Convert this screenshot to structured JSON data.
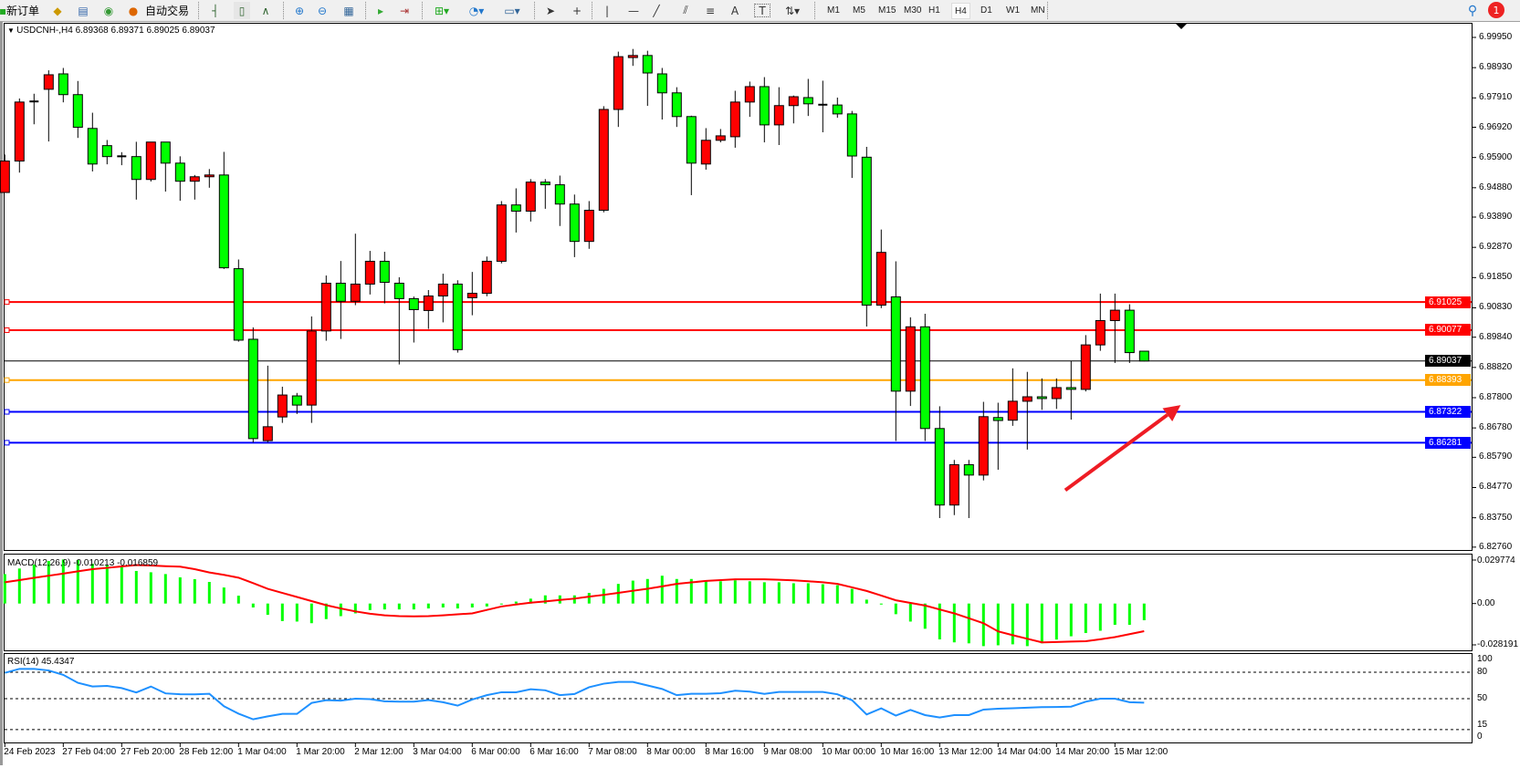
{
  "toolbar": {
    "new_order": "新订单",
    "auto_trading": "自动交易",
    "timeframes": [
      "M1",
      "M5",
      "M15",
      "M30",
      "H1",
      "H4",
      "D1",
      "W1",
      "MN"
    ],
    "active_timeframe": "H4",
    "text_tool": "A",
    "text_label_tool": "T",
    "notification_count": "1",
    "icons": [
      "new-order-icon",
      "market-watch-icon",
      "navigator-icon",
      "signals-icon",
      "auto-trading-icon",
      "bar-chart-icon",
      "candlestick-icon",
      "line-chart-icon",
      "zoom-in-icon",
      "zoom-out-icon",
      "tile-windows-icon",
      "auto-scroll-icon",
      "chart-shift-icon",
      "indicators-icon",
      "periods-icon",
      "templates-icon",
      "cursor-icon",
      "crosshair-icon",
      "vertical-line-icon",
      "horizontal-line-icon",
      "trendline-icon",
      "equidistant-channel-icon",
      "fibonacci-icon",
      "text-icon",
      "text-label-icon",
      "arrows-icon",
      "search-icon",
      "notification-icon"
    ]
  },
  "chart": {
    "legend": "USDCNH-,H4  6.89368 6.89371 6.89025 6.89037",
    "colors": {
      "bull": "#ff0000",
      "bear": "#00ff00",
      "macd_hist": "#00ff00",
      "macd_signal": "#ff0000",
      "rsi": "#1e90ff"
    },
    "price_ticks": [
      "6.99950",
      "6.98930",
      "6.97910",
      "6.96920",
      "6.95900",
      "6.94880",
      "6.93890",
      "6.92870",
      "6.91850",
      "6.90830",
      "6.89840",
      "6.88820",
      "6.87800",
      "6.86780",
      "6.85790",
      "6.84770",
      "6.83750",
      "6.82760"
    ],
    "hlines": [
      {
        "price": "6.91025",
        "color": "#ff0000"
      },
      {
        "price": "6.90077",
        "color": "#ff0000"
      },
      {
        "price": "6.89037",
        "color": "#000000",
        "bid": true
      },
      {
        "price": "6.88393",
        "color": "#ffa500"
      },
      {
        "price": "6.87322",
        "color": "#0000ff"
      },
      {
        "price": "6.86281",
        "color": "#0000ff"
      }
    ],
    "arrow": {
      "color": "#ee1c24",
      "from_bar": 72.6,
      "from_price": 6.8468,
      "to_bar": 80.5,
      "to_price": 6.8755
    },
    "ohlc": [
      [
        6.9472,
        6.96,
        6.9472,
        6.9578
      ],
      [
        6.9578,
        6.9789,
        6.9539,
        6.9777
      ],
      [
        6.9779,
        6.9805,
        6.9702,
        6.9779
      ],
      [
        6.982,
        6.9884,
        6.9644,
        6.9869
      ],
      [
        6.9872,
        6.9892,
        6.9776,
        6.9802
      ],
      [
        6.9802,
        6.9848,
        6.9656,
        6.9692
      ],
      [
        6.9688,
        6.9741,
        6.9543,
        6.9568
      ],
      [
        6.963,
        6.9649,
        6.9567,
        6.9593
      ],
      [
        6.9594,
        6.9608,
        6.9564,
        6.9594
      ],
      [
        6.9593,
        6.9643,
        6.9448,
        6.9516
      ],
      [
        6.9516,
        6.9642,
        6.9509,
        6.9642
      ],
      [
        6.9642,
        6.9642,
        6.9475,
        6.9571
      ],
      [
        6.9571,
        6.9594,
        6.9444,
        6.951
      ],
      [
        6.951,
        6.9531,
        6.9448,
        6.9525
      ],
      [
        6.9525,
        6.9551,
        6.9488,
        6.9531
      ],
      [
        6.9531,
        6.9609,
        6.9214,
        6.9218
      ],
      [
        6.9215,
        6.9246,
        6.8969,
        6.8974
      ],
      [
        6.8977,
        6.9017,
        6.8629,
        6.8642
      ],
      [
        6.8635,
        6.8888,
        6.8629,
        6.8682
      ],
      [
        6.8715,
        6.8817,
        6.8695,
        6.8789
      ],
      [
        6.8786,
        6.8796,
        6.8725,
        6.8755
      ],
      [
        6.8755,
        6.9054,
        6.8695,
        6.9005
      ],
      [
        6.9005,
        6.9192,
        6.8972,
        6.9166
      ],
      [
        6.9166,
        6.9241,
        6.8978,
        6.9105
      ],
      [
        6.9105,
        6.9333,
        6.9092,
        6.9163
      ],
      [
        6.9163,
        6.9275,
        6.9128,
        6.924
      ],
      [
        6.924,
        6.9272,
        6.9098,
        6.9169
      ],
      [
        6.9166,
        6.9186,
        6.8892,
        6.9114
      ],
      [
        6.9114,
        6.9121,
        6.8966,
        6.9077
      ],
      [
        6.9074,
        6.9143,
        6.9012,
        6.9123
      ],
      [
        6.9123,
        6.9198,
        6.9034,
        6.9163
      ],
      [
        6.9163,
        6.9176,
        6.8932,
        6.8942
      ],
      [
        6.9117,
        6.9204,
        6.9058,
        6.9132
      ],
      [
        6.9132,
        6.9256,
        6.9122,
        6.924
      ],
      [
        6.924,
        6.9443,
        6.9233,
        6.943
      ],
      [
        6.943,
        6.9486,
        6.9337,
        6.9409
      ],
      [
        6.9409,
        6.9517,
        6.9374,
        6.9507
      ],
      [
        6.9507,
        6.9517,
        6.9417,
        6.9498
      ],
      [
        6.9498,
        6.9529,
        6.9359,
        6.9433
      ],
      [
        6.9433,
        6.9465,
        6.9254,
        6.9307
      ],
      [
        6.9307,
        6.9443,
        6.9282,
        6.9412
      ],
      [
        6.9412,
        6.9763,
        6.9405,
        6.9752
      ],
      [
        6.9752,
        6.9947,
        6.9693,
        6.993
      ],
      [
        6.9927,
        6.9956,
        6.9899,
        6.9934
      ],
      [
        6.9934,
        6.995,
        6.9764,
        6.9875
      ],
      [
        6.9872,
        6.9892,
        6.9718,
        6.9808
      ],
      [
        6.9808,
        6.9827,
        6.9693,
        6.9728
      ],
      [
        6.9728,
        6.9731,
        6.9463,
        6.9571
      ],
      [
        6.9568,
        6.9689,
        6.9549,
        6.9648
      ],
      [
        6.9648,
        6.9686,
        6.9641,
        6.9663
      ],
      [
        6.966,
        6.9815,
        6.9623,
        6.9777
      ],
      [
        6.9777,
        6.9846,
        6.9727,
        6.9829
      ],
      [
        6.9829,
        6.9861,
        6.9641,
        6.97
      ],
      [
        6.97,
        6.9827,
        6.9632,
        6.9765
      ],
      [
        6.9765,
        6.9799,
        6.9705,
        6.9795
      ],
      [
        6.9792,
        6.9855,
        6.973,
        6.9771
      ],
      [
        6.9768,
        6.9849,
        6.9675,
        6.9768
      ],
      [
        6.9767,
        6.9792,
        6.9724,
        6.9737
      ],
      [
        6.9737,
        6.9747,
        6.9521,
        6.9595
      ],
      [
        6.9591,
        6.9626,
        6.902,
        6.9092
      ],
      [
        6.9092,
        6.9347,
        6.9082,
        6.927
      ],
      [
        6.912,
        6.924,
        6.8634,
        6.8802
      ],
      [
        6.8802,
        6.9051,
        6.8752,
        6.9019
      ],
      [
        6.9019,
        6.9063,
        6.8634,
        6.8676
      ],
      [
        6.8676,
        6.8751,
        6.8374,
        6.8418
      ],
      [
        6.8418,
        6.857,
        6.8384,
        6.8554
      ],
      [
        6.8554,
        6.857,
        6.8374,
        6.8519
      ],
      [
        6.8519,
        6.8766,
        6.8501,
        6.8716
      ],
      [
        6.8713,
        6.8763,
        6.8537,
        6.8703
      ],
      [
        6.8704,
        6.8879,
        6.8685,
        6.8768
      ],
      [
        6.8768,
        6.8867,
        6.8605,
        6.8783
      ],
      [
        6.8783,
        6.8845,
        6.8739,
        6.8777
      ],
      [
        6.8777,
        6.8845,
        6.8742,
        6.8814
      ],
      [
        6.8814,
        6.8903,
        6.8706,
        6.8808
      ],
      [
        6.8808,
        6.8991,
        6.8801,
        6.8958
      ],
      [
        6.8958,
        6.9131,
        6.8938,
        6.904
      ],
      [
        6.904,
        6.9131,
        6.8897,
        6.9075
      ],
      [
        6.9075,
        6.9095,
        6.8897,
        6.8932
      ],
      [
        6.89368,
        6.89371,
        6.89025,
        6.89037
      ]
    ],
    "time_labels": [
      "24 Feb 2023",
      "27 Feb 04:00",
      "27 Feb 20:00",
      "28 Feb 12:00",
      "1 Mar 04:00",
      "1 Mar 20:00",
      "2 Mar 12:00",
      "3 Mar 04:00",
      "6 Mar 00:00",
      "6 Mar 16:00",
      "7 Mar 08:00",
      "8 Mar 00:00",
      "8 Mar 16:00",
      "9 Mar 08:00",
      "10 Mar 00:00",
      "10 Mar 16:00",
      "13 Mar 12:00",
      "14 Mar 04:00",
      "14 Mar 20:00",
      "15 Mar 12:00"
    ]
  },
  "macd": {
    "legend": "MACD(12,26,9) -0.010213 -0.016859",
    "axis_labels": [
      "0.029774",
      "0.00",
      "-0.028191"
    ],
    "range": [
      -0.028191,
      0.029774
    ],
    "histogram": [
      0.018,
      0.0214,
      0.0238,
      0.026,
      0.0269,
      0.0266,
      0.0243,
      0.0236,
      0.0223,
      0.0199,
      0.0191,
      0.018,
      0.016,
      0.0149,
      0.0132,
      0.0098,
      0.0048,
      -0.0024,
      -0.0069,
      -0.0107,
      -0.011,
      -0.012,
      -0.0095,
      -0.0077,
      -0.006,
      -0.004,
      -0.0036,
      -0.0036,
      -0.0036,
      -0.003,
      -0.0024,
      -0.003,
      -0.0024,
      -0.0018,
      0,
      0.0012,
      0.003,
      0.005,
      0.005,
      0.005,
      0.0065,
      0.009,
      0.012,
      0.014,
      0.015,
      0.017,
      0.015,
      0.015,
      0.0136,
      0.0136,
      0.0142,
      0.0136,
      0.013,
      0.013,
      0.0124,
      0.0124,
      0.0118,
      0.0112,
      0.009,
      0.0024,
      -0.0006,
      -0.0065,
      -0.011,
      -0.0154,
      -0.0219,
      -0.0237,
      -0.0243,
      -0.026,
      -0.0255,
      -0.0249,
      -0.026,
      -0.0243,
      -0.022,
      -0.02,
      -0.018,
      -0.0166,
      -0.013,
      -0.013,
      -0.0102
    ],
    "signal": [
      0.013,
      0.0143,
      0.0157,
      0.017,
      0.0183,
      0.0197,
      0.021,
      0.0218,
      0.0227,
      0.0235,
      0.0232,
      0.0228,
      0.0225,
      0.021,
      0.019,
      0.0175,
      0.0158,
      0.0125,
      0.009,
      0.0065,
      0.004,
      0.0015,
      -0.001,
      -0.003,
      -0.0048,
      -0.0062,
      -0.0072,
      -0.0077,
      -0.0078,
      -0.0077,
      -0.0072,
      -0.0066,
      -0.006,
      -0.0039,
      -0.0018,
      -0.0006,
      0.0005,
      0.0013,
      0.0022,
      0.003,
      0.0042,
      0.0053,
      0.0065,
      0.0078,
      0.009,
      0.0105,
      0.012,
      0.0129,
      0.0138,
      0.0143,
      0.0148,
      0.0148,
      0.0148,
      0.0145,
      0.0142,
      0.0136,
      0.013,
      0.012,
      0.0099,
      0.0077,
      0.0049,
      0.002,
      0.0004,
      -0.0012,
      -0.0036,
      -0.006,
      -0.009,
      -0.012,
      -0.017,
      -0.0193,
      -0.0215,
      -0.0237,
      -0.0235,
      -0.0232,
      -0.023,
      -0.0218,
      -0.0205,
      -0.0187,
      -0.0169
    ]
  },
  "rsi": {
    "legend": "RSI(14) 45.4347",
    "axis_labels": [
      "100",
      "80",
      "50",
      "15",
      "0"
    ],
    "levels": [
      80,
      50,
      15
    ],
    "values": [
      79.3,
      83.8,
      83.8,
      82,
      77,
      68,
      63.8,
      64.5,
      62,
      57,
      63.8,
      56,
      55,
      54.9,
      55.6,
      41.4,
      33,
      26.6,
      30,
      32.8,
      32.8,
      45.2,
      48.3,
      47.8,
      50,
      49.5,
      47,
      46.6,
      46.6,
      48.5,
      46,
      42.1,
      49,
      54,
      57.3,
      57.3,
      60.7,
      59.5,
      54,
      55.3,
      63,
      67,
      69,
      69,
      65,
      61,
      54,
      55.5,
      55.5,
      56.2,
      59,
      58,
      55.5,
      57.6,
      57.6,
      57.6,
      57.6,
      55,
      48.3,
      32.1,
      39,
      30.8,
      37.3,
      31.4,
      28.7,
      31.4,
      31.4,
      37.6,
      38.6,
      39.2,
      39.8,
      40.4,
      40.6,
      41,
      46.6,
      50,
      50,
      46,
      45.4347
    ]
  }
}
